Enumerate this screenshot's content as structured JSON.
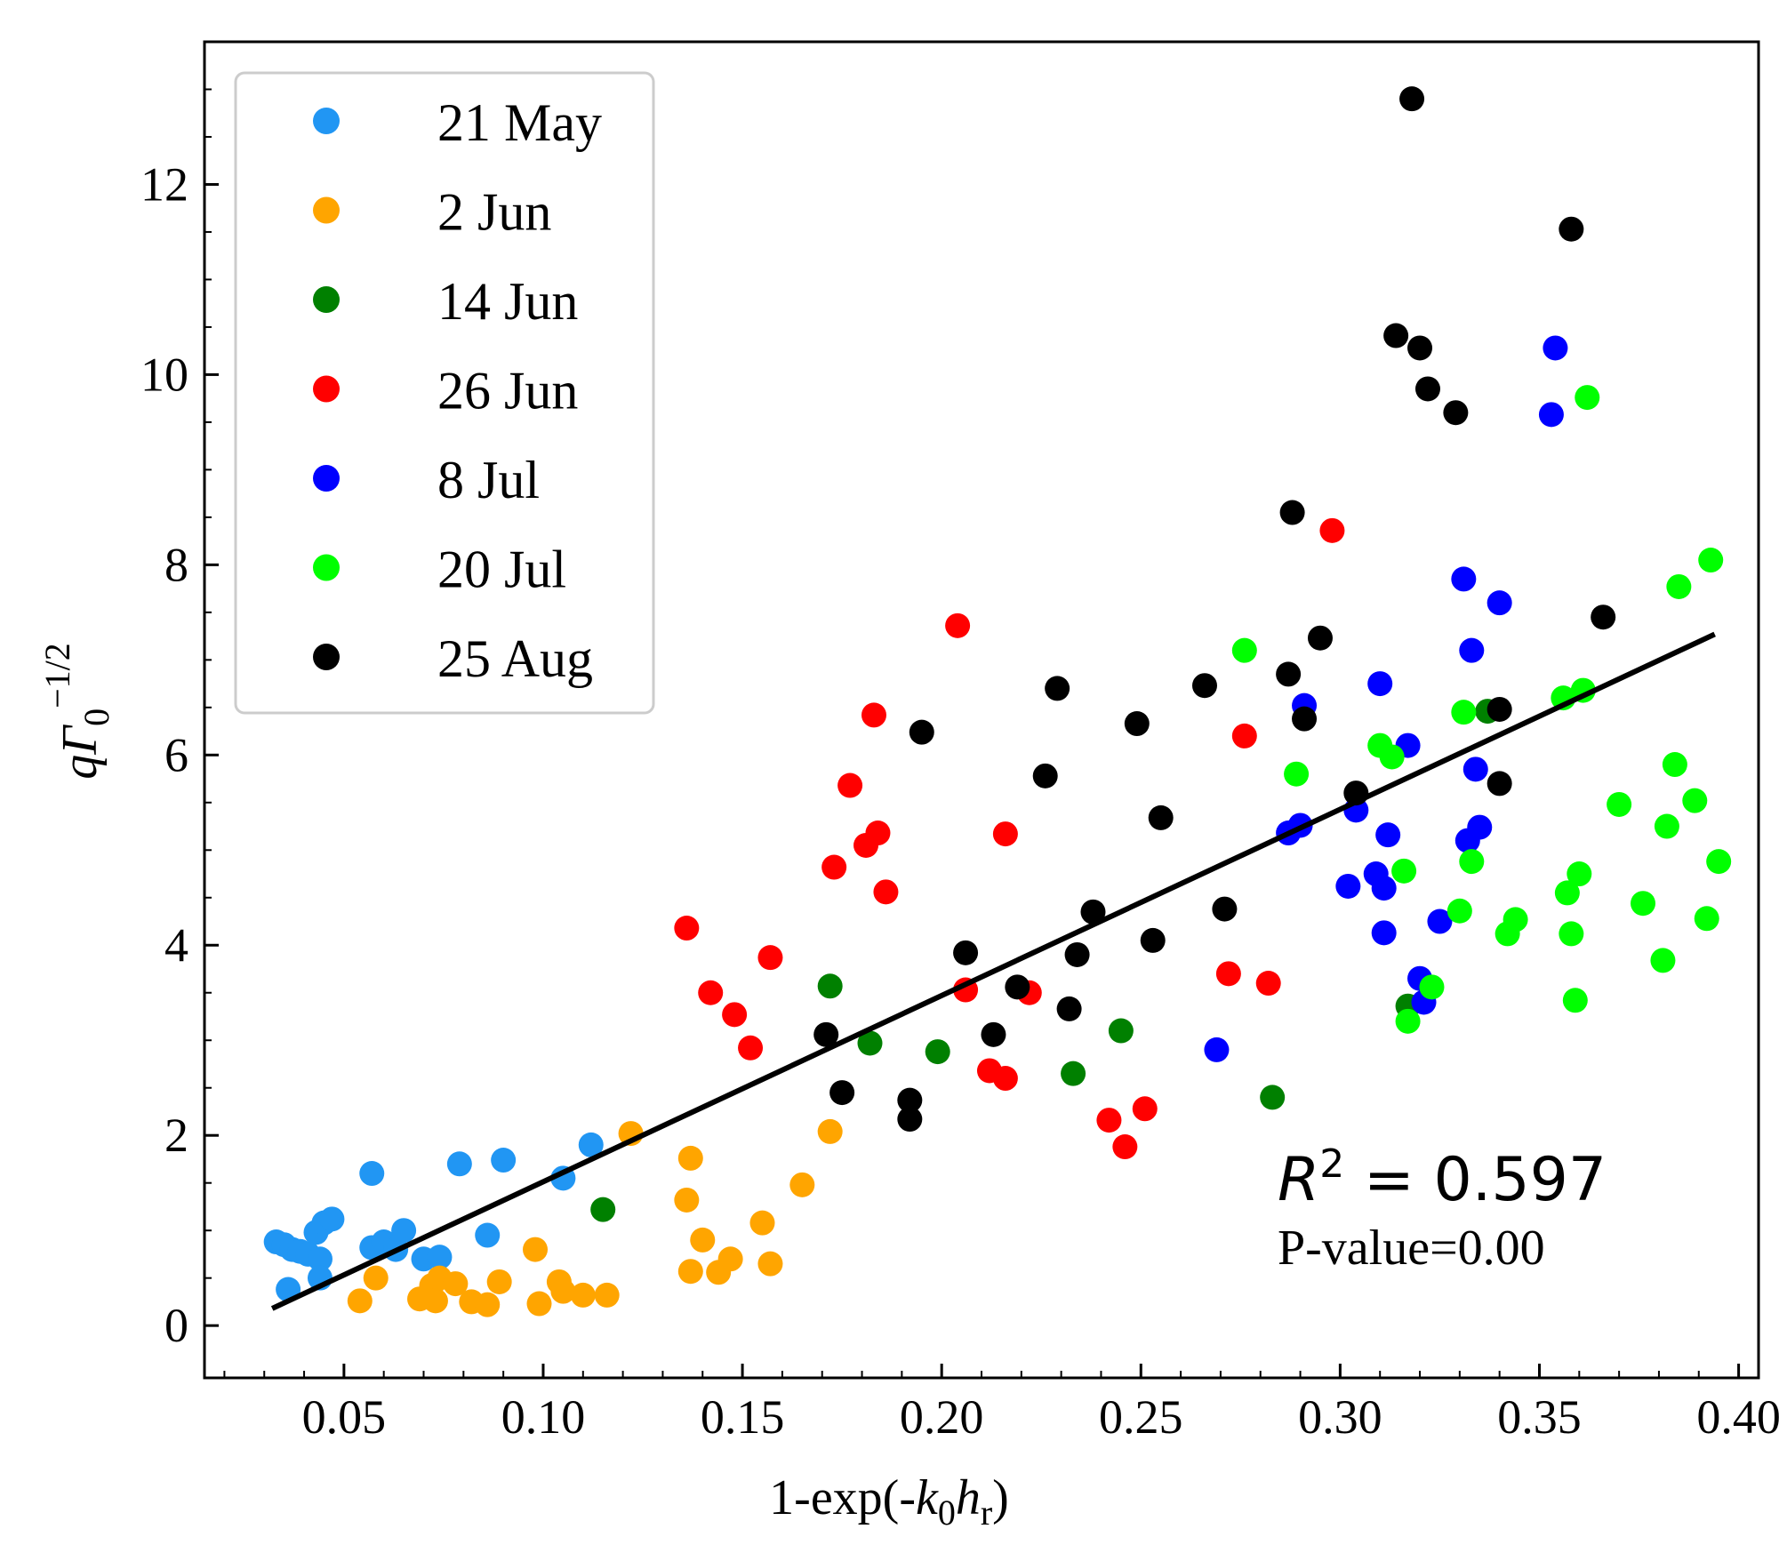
{
  "chart_data": {
    "type": "scatter",
    "title": "",
    "xlabel": "1-exp(-k0hr)",
    "xlabel_parts": {
      "prefix": "1-exp(-",
      "k": "k",
      "k_sub": "0",
      "h": "h",
      "h_sub": "r",
      "suffix": ")"
    },
    "ylabel": "qΓ0^-1/2",
    "ylabel_parts": {
      "q": "q",
      "gamma": "Γ",
      "sub": "0",
      "sup": "−1/2"
    },
    "xlim": [
      0.015,
      0.405
    ],
    "ylim": [
      -0.55,
      13.5
    ],
    "xticks": [
      0.05,
      0.1,
      0.15,
      0.2,
      0.25,
      0.3,
      0.35,
      0.4
    ],
    "xtick_labels": [
      "0.05",
      "0.10",
      "0.15",
      "0.20",
      "0.25",
      "0.30",
      "0.35",
      "0.40"
    ],
    "yticks": [
      0,
      2,
      4,
      6,
      8,
      10,
      12
    ],
    "ytick_labels": [
      "0",
      "2",
      "4",
      "6",
      "8",
      "10",
      "12"
    ],
    "grid": false,
    "legend_position": "top-left",
    "series": [
      {
        "name": "21 May",
        "color": "#2196f3",
        "points": [
          [
            0.033,
            0.88
          ],
          [
            0.035,
            0.85
          ],
          [
            0.037,
            0.8
          ],
          [
            0.039,
            0.78
          ],
          [
            0.041,
            0.75
          ],
          [
            0.043,
            0.98
          ],
          [
            0.044,
            0.7
          ],
          [
            0.045,
            1.08
          ],
          [
            0.047,
            1.12
          ],
          [
            0.036,
            0.38
          ],
          [
            0.044,
            0.5
          ],
          [
            0.057,
            1.6
          ],
          [
            0.057,
            0.82
          ],
          [
            0.06,
            0.88
          ],
          [
            0.063,
            0.8
          ],
          [
            0.065,
            1.0
          ],
          [
            0.07,
            0.7
          ],
          [
            0.074,
            0.72
          ],
          [
            0.079,
            1.7
          ],
          [
            0.086,
            0.95
          ],
          [
            0.09,
            1.74
          ],
          [
            0.105,
            1.55
          ],
          [
            0.112,
            1.9
          ]
        ]
      },
      {
        "name": "2 Jun",
        "color": "#ffa500",
        "points": [
          [
            0.054,
            0.26
          ],
          [
            0.058,
            0.5
          ],
          [
            0.069,
            0.28
          ],
          [
            0.072,
            0.42
          ],
          [
            0.073,
            0.26
          ],
          [
            0.074,
            0.5
          ],
          [
            0.078,
            0.44
          ],
          [
            0.082,
            0.25
          ],
          [
            0.086,
            0.22
          ],
          [
            0.089,
            0.46
          ],
          [
            0.098,
            0.8
          ],
          [
            0.099,
            0.23
          ],
          [
            0.104,
            0.46
          ],
          [
            0.105,
            0.36
          ],
          [
            0.11,
            0.32
          ],
          [
            0.116,
            0.32
          ],
          [
            0.122,
            2.02
          ],
          [
            0.136,
            1.32
          ],
          [
            0.137,
            0.57
          ],
          [
            0.137,
            1.76
          ],
          [
            0.14,
            0.9
          ],
          [
            0.144,
            0.56
          ],
          [
            0.147,
            0.7
          ],
          [
            0.155,
            1.08
          ],
          [
            0.157,
            0.65
          ],
          [
            0.165,
            1.48
          ],
          [
            0.172,
            2.04
          ]
        ]
      },
      {
        "name": "14 Jun",
        "color": "#008000",
        "points": [
          [
            0.115,
            1.22
          ],
          [
            0.172,
            3.57
          ],
          [
            0.182,
            2.97
          ],
          [
            0.199,
            2.88
          ],
          [
            0.233,
            2.65
          ],
          [
            0.245,
            3.1
          ],
          [
            0.283,
            2.4
          ],
          [
            0.317,
            3.36
          ],
          [
            0.337,
            6.46
          ]
        ]
      },
      {
        "name": "26 Jun",
        "color": "#ff0000",
        "points": [
          [
            0.136,
            4.18
          ],
          [
            0.142,
            3.5
          ],
          [
            0.148,
            3.27
          ],
          [
            0.152,
            2.92
          ],
          [
            0.157,
            3.87
          ],
          [
            0.173,
            4.82
          ],
          [
            0.177,
            5.68
          ],
          [
            0.181,
            5.05
          ],
          [
            0.183,
            6.42
          ],
          [
            0.184,
            5.18
          ],
          [
            0.186,
            4.56
          ],
          [
            0.204,
            7.36
          ],
          [
            0.206,
            3.53
          ],
          [
            0.212,
            2.68
          ],
          [
            0.216,
            2.6
          ],
          [
            0.216,
            5.17
          ],
          [
            0.222,
            3.5
          ],
          [
            0.242,
            2.16
          ],
          [
            0.246,
            1.88
          ],
          [
            0.251,
            2.28
          ],
          [
            0.272,
            3.7
          ],
          [
            0.276,
            6.2
          ],
          [
            0.282,
            3.6
          ],
          [
            0.298,
            8.36
          ]
        ]
      },
      {
        "name": "8 Jul",
        "color": "#0000ff",
        "points": [
          [
            0.269,
            2.9
          ],
          [
            0.287,
            5.18
          ],
          [
            0.29,
            5.26
          ],
          [
            0.291,
            6.52
          ],
          [
            0.302,
            4.62
          ],
          [
            0.304,
            5.42
          ],
          [
            0.309,
            4.75
          ],
          [
            0.31,
            6.75
          ],
          [
            0.311,
            4.6
          ],
          [
            0.311,
            4.13
          ],
          [
            0.312,
            5.16
          ],
          [
            0.317,
            6.1
          ],
          [
            0.32,
            3.65
          ],
          [
            0.321,
            3.4
          ],
          [
            0.325,
            4.25
          ],
          [
            0.331,
            7.85
          ],
          [
            0.332,
            5.1
          ],
          [
            0.333,
            7.1
          ],
          [
            0.334,
            5.85
          ],
          [
            0.335,
            5.24
          ],
          [
            0.34,
            7.6
          ],
          [
            0.353,
            9.58
          ],
          [
            0.354,
            10.28
          ]
        ]
      },
      {
        "name": "20 Jul",
        "color": "#00ff00",
        "points": [
          [
            0.276,
            7.1
          ],
          [
            0.289,
            5.8
          ],
          [
            0.31,
            6.1
          ],
          [
            0.313,
            5.98
          ],
          [
            0.316,
            4.78
          ],
          [
            0.317,
            3.2
          ],
          [
            0.323,
            3.56
          ],
          [
            0.33,
            4.36
          ],
          [
            0.331,
            6.45
          ],
          [
            0.333,
            4.88
          ],
          [
            0.342,
            4.12
          ],
          [
            0.344,
            4.27
          ],
          [
            0.356,
            6.6
          ],
          [
            0.357,
            4.55
          ],
          [
            0.358,
            4.12
          ],
          [
            0.359,
            3.42
          ],
          [
            0.36,
            4.75
          ],
          [
            0.361,
            6.68
          ],
          [
            0.362,
            9.76
          ],
          [
            0.37,
            5.48
          ],
          [
            0.376,
            4.44
          ],
          [
            0.381,
            3.84
          ],
          [
            0.382,
            5.25
          ],
          [
            0.384,
            5.9
          ],
          [
            0.385,
            7.77
          ],
          [
            0.389,
            5.52
          ],
          [
            0.392,
            4.28
          ],
          [
            0.393,
            8.05
          ],
          [
            0.395,
            4.88
          ]
        ]
      },
      {
        "name": "25 Aug",
        "color": "#000000",
        "points": [
          [
            0.171,
            3.06
          ],
          [
            0.175,
            2.45
          ],
          [
            0.192,
            2.37
          ],
          [
            0.192,
            2.17
          ],
          [
            0.195,
            6.24
          ],
          [
            0.206,
            3.92
          ],
          [
            0.213,
            3.06
          ],
          [
            0.219,
            3.56
          ],
          [
            0.226,
            5.78
          ],
          [
            0.229,
            6.7
          ],
          [
            0.232,
            3.33
          ],
          [
            0.234,
            3.9
          ],
          [
            0.238,
            4.35
          ],
          [
            0.249,
            6.33
          ],
          [
            0.253,
            4.05
          ],
          [
            0.255,
            5.34
          ],
          [
            0.266,
            6.73
          ],
          [
            0.271,
            4.38
          ],
          [
            0.287,
            6.85
          ],
          [
            0.288,
            8.55
          ],
          [
            0.291,
            6.38
          ],
          [
            0.295,
            7.23
          ],
          [
            0.304,
            5.6
          ],
          [
            0.314,
            10.41
          ],
          [
            0.318,
            12.9
          ],
          [
            0.32,
            10.28
          ],
          [
            0.322,
            9.85
          ],
          [
            0.329,
            9.6
          ],
          [
            0.34,
            6.48
          ],
          [
            0.34,
            5.7
          ],
          [
            0.358,
            11.53
          ],
          [
            0.366,
            7.45
          ]
        ]
      }
    ],
    "fit_line": {
      "x": [
        0.032,
        0.394
      ],
      "y": [
        0.18,
        7.27
      ],
      "color": "#000000"
    },
    "annotations": {
      "r2_symbol": "R",
      "r2_sup": "2",
      "r2_value": " = 0.597",
      "pvalue": "P-value=0.00"
    }
  }
}
